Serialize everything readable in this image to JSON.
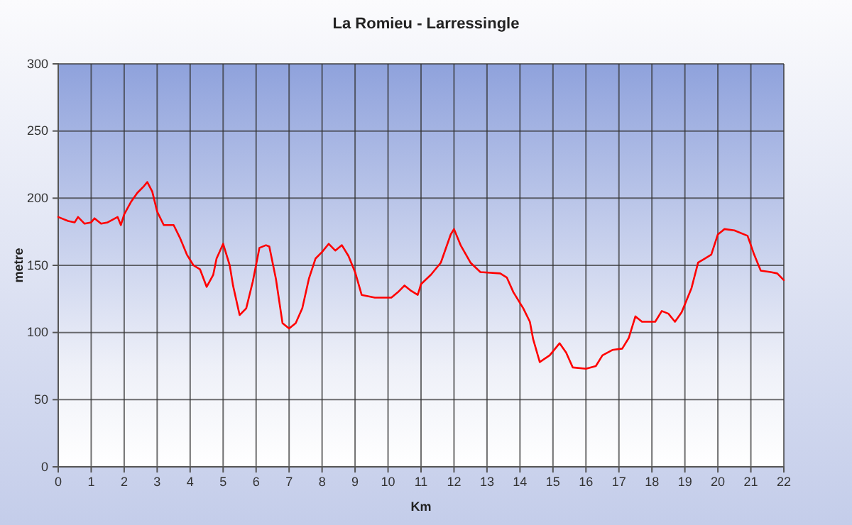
{
  "chart_data": {
    "type": "line",
    "title": "La Romieu - Larressingle",
    "xlabel": "Km",
    "ylabel": "metre",
    "xlim": [
      0,
      22
    ],
    "xticks": [
      0,
      1,
      2,
      3,
      4,
      5,
      6,
      7,
      8,
      9,
      10,
      11,
      12,
      13,
      14,
      15,
      16,
      17,
      18,
      19,
      20,
      21,
      22
    ],
    "ylim": [
      0,
      300
    ],
    "yticks": [
      0,
      50,
      100,
      150,
      200,
      250,
      300
    ],
    "grid": true,
    "marker": "none",
    "line_style": "solid",
    "series": [
      {
        "color": "#ff0000",
        "x": [
          0,
          0.3,
          0.5,
          0.6,
          0.8,
          1.0,
          1.1,
          1.3,
          1.5,
          1.8,
          1.9,
          2.0,
          2.2,
          2.4,
          2.6,
          2.7,
          2.85,
          3.0,
          3.2,
          3.5,
          3.7,
          3.9,
          4.1,
          4.3,
          4.5,
          4.7,
          4.8,
          5.0,
          5.2,
          5.3,
          5.5,
          5.7,
          5.9,
          6.1,
          6.3,
          6.4,
          6.6,
          6.8,
          7.0,
          7.2,
          7.4,
          7.6,
          7.8,
          8.0,
          8.2,
          8.4,
          8.6,
          8.8,
          9.0,
          9.2,
          9.6,
          10.1,
          10.3,
          10.5,
          10.7,
          10.9,
          11.0,
          11.3,
          11.6,
          11.9,
          12.0,
          12.2,
          12.5,
          12.8,
          13.4,
          13.6,
          13.8,
          14.1,
          14.3,
          14.4,
          14.6,
          14.9,
          15.2,
          15.4,
          15.6,
          16.0,
          16.3,
          16.5,
          16.8,
          17.1,
          17.3,
          17.5,
          17.7,
          18.1,
          18.3,
          18.5,
          18.7,
          18.9,
          19.2,
          19.4,
          19.6,
          19.8,
          20.0,
          20.2,
          20.5,
          20.9,
          21.1,
          21.3,
          21.6,
          21.8,
          22.0
        ],
        "values": [
          186,
          183,
          182,
          186,
          181,
          182,
          185,
          181,
          182,
          186,
          180,
          188,
          197,
          204,
          209,
          212,
          205,
          190,
          180,
          180,
          170,
          158,
          150,
          147,
          134,
          143,
          155,
          166,
          150,
          135,
          113,
          118,
          138,
          163,
          165,
          164,
          140,
          107,
          103,
          107,
          118,
          140,
          155,
          160,
          166,
          161,
          165,
          157,
          145,
          128,
          126,
          126,
          130,
          135,
          131,
          128,
          136,
          143,
          152,
          173,
          177,
          165,
          152,
          145,
          144,
          141,
          130,
          118,
          108,
          95,
          78,
          83,
          92,
          85,
          74,
          73,
          75,
          83,
          87,
          88,
          96,
          112,
          108,
          108,
          116,
          114,
          108,
          115,
          133,
          152,
          155,
          158,
          173,
          177,
          176,
          172,
          158,
          146,
          145,
          144,
          139
        ]
      }
    ]
  }
}
